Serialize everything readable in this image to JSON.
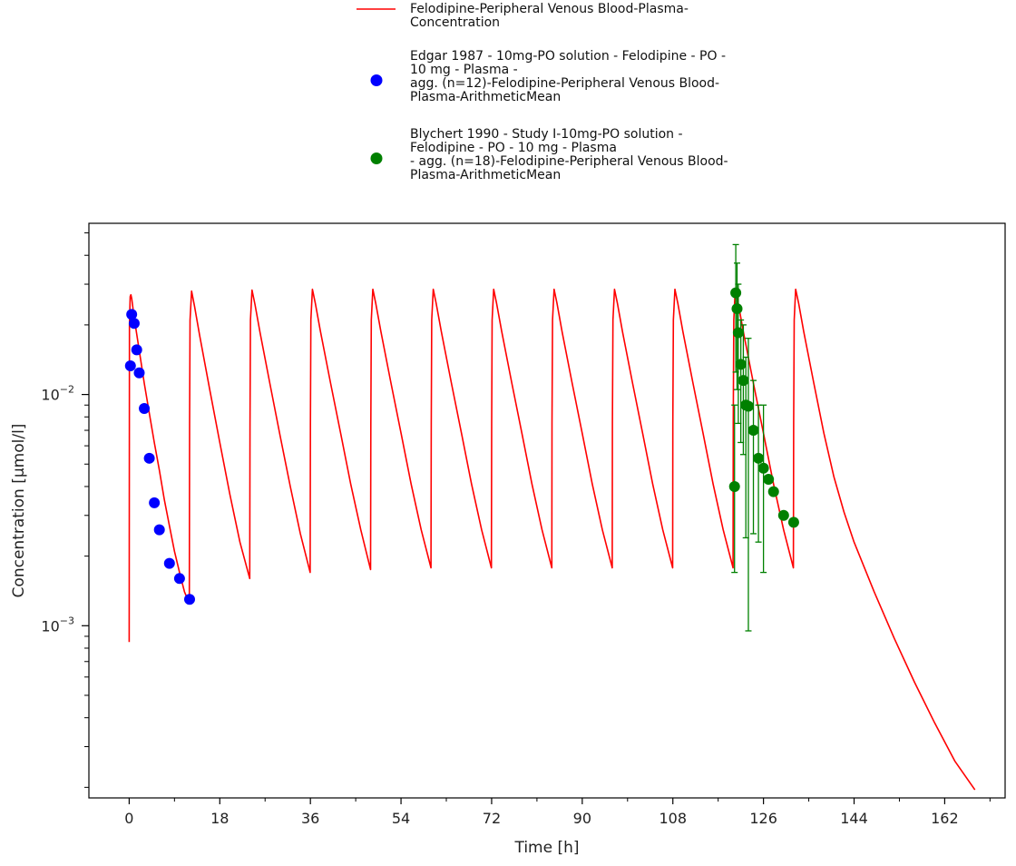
{
  "chart_data": {
    "type": "line",
    "xlabel": "Time [h]",
    "ylabel": "Concentration [µmol/l]",
    "xlim": [
      -8,
      174
    ],
    "ylim": [
      0.00018,
      0.055
    ],
    "yscale": "log",
    "x_ticks": [
      0,
      18,
      36,
      54,
      72,
      90,
      108,
      126,
      144,
      162
    ],
    "y_ticks": [
      {
        "value": 0.001,
        "base": "10",
        "exp": "−3"
      },
      {
        "value": 0.01,
        "base": "10",
        "exp": "−2"
      }
    ],
    "legend_position": "top-center",
    "series": [
      {
        "name": "Felodipine-Peripheral Venous Blood-Plasma-Concentration",
        "legend_lines": [
          "Felodipine-Peripheral Venous Blood-Plasma-",
          "Concentration"
        ],
        "kind": "line",
        "color": "#ff0000",
        "dosing_interval_h": 12,
        "n_doses": 12,
        "x": [
          0,
          0.05,
          0.2,
          0.35,
          0.5,
          1,
          2,
          3,
          4,
          5,
          6,
          7,
          8,
          9,
          10,
          11,
          11.95,
          12,
          12.1,
          12.4,
          13,
          14,
          16,
          18,
          20,
          22,
          23.95,
          24,
          24.1,
          24.4,
          25,
          26,
          28,
          30,
          32,
          34,
          35.95,
          36,
          36.1,
          36.4,
          37,
          38,
          40,
          42,
          44,
          46,
          47.95,
          48,
          48.1,
          48.4,
          49,
          50,
          52,
          54,
          56,
          58,
          59.95,
          60,
          60.1,
          60.4,
          61,
          62,
          64,
          66,
          68,
          70,
          71.95,
          72,
          72.1,
          72.4,
          73,
          74,
          76,
          78,
          80,
          82,
          83.95,
          84,
          84.1,
          84.4,
          85,
          86,
          88,
          90,
          92,
          94,
          95.95,
          96,
          96.1,
          96.4,
          97,
          98,
          100,
          102,
          104,
          106,
          107.95,
          108,
          108.1,
          108.4,
          109,
          110,
          112,
          114,
          116,
          118,
          119.95,
          120,
          120.1,
          120.4,
          121,
          122,
          124,
          126,
          128,
          130,
          131.95,
          132,
          132.1,
          132.4,
          133,
          134,
          136,
          138,
          140,
          142,
          144,
          148,
          152,
          156,
          160,
          164,
          168
        ],
        "y": [
          0.00085,
          0.02,
          0.0265,
          0.027,
          0.026,
          0.0215,
          0.0155,
          0.0112,
          0.0083,
          0.0062,
          0.0047,
          0.0035,
          0.0027,
          0.0021,
          0.0017,
          0.0014,
          0.00125,
          0.0075,
          0.021,
          0.028,
          0.024,
          0.018,
          0.0105,
          0.0062,
          0.0037,
          0.0023,
          0.0016,
          0.0075,
          0.021,
          0.0283,
          0.0245,
          0.0185,
          0.011,
          0.0066,
          0.004,
          0.0025,
          0.0017,
          0.0075,
          0.021,
          0.0285,
          0.0247,
          0.0187,
          0.0112,
          0.0068,
          0.0041,
          0.0026,
          0.00175,
          0.0075,
          0.021,
          0.0285,
          0.0247,
          0.0187,
          0.0112,
          0.0068,
          0.0041,
          0.0026,
          0.00178,
          0.0075,
          0.021,
          0.0285,
          0.0247,
          0.0187,
          0.0112,
          0.0068,
          0.0041,
          0.0026,
          0.00178,
          0.0075,
          0.021,
          0.0285,
          0.0247,
          0.0187,
          0.0112,
          0.0068,
          0.0041,
          0.0026,
          0.00178,
          0.0075,
          0.021,
          0.0285,
          0.0247,
          0.0187,
          0.0112,
          0.0068,
          0.0041,
          0.0026,
          0.00178,
          0.0075,
          0.021,
          0.0285,
          0.0247,
          0.0187,
          0.0112,
          0.0068,
          0.0041,
          0.0026,
          0.00178,
          0.0075,
          0.021,
          0.0285,
          0.0247,
          0.0187,
          0.0112,
          0.0068,
          0.0041,
          0.0026,
          0.00178,
          0.0075,
          0.021,
          0.0285,
          0.0247,
          0.0187,
          0.0112,
          0.0068,
          0.0041,
          0.0026,
          0.00178,
          0.0075,
          0.021,
          0.0285,
          0.0247,
          0.0187,
          0.0112,
          0.0068,
          0.0044,
          0.0031,
          0.0023,
          0.0014,
          0.00088,
          0.00057,
          0.00038,
          0.00026,
          0.000195
        ]
      },
      {
        "name": "Edgar 1987 - 10mg-PO solution - Felodipine - PO - 10 mg - Plasma - agg. (n=12)-Felodipine-Peripheral Venous Blood-Plasma-ArithmeticMean",
        "legend_lines": [
          "Edgar 1987 - 10mg-PO solution - Felodipine - PO -",
          "10 mg - Plasma -",
          "agg. (n=12)-Felodipine-Peripheral Venous Blood-",
          "Plasma-ArithmeticMean"
        ],
        "kind": "scatter",
        "color": "#0000ff",
        "x": [
          0.25,
          0.5,
          1.0,
          1.5,
          2.0,
          3.0,
          4.0,
          5.0,
          6.0,
          8.0,
          10.0,
          12.0
        ],
        "y": [
          0.0133,
          0.0222,
          0.0203,
          0.0156,
          0.0124,
          0.0087,
          0.0053,
          0.0034,
          0.0026,
          0.00186,
          0.0016,
          0.0013
        ]
      },
      {
        "name": "Blychert 1990 - Study I-10mg-PO solution - Felodipine - PO - 10 mg - Plasma - agg. (n=18)-Felodipine-Peripheral Venous Blood-Plasma-ArithmeticMean",
        "legend_lines": [
          "Blychert 1990 - Study I-10mg-PO solution -",
          "Felodipine - PO - 10 mg - Plasma",
          "- agg. (n=18)-Felodipine-Peripheral Venous Blood-",
          "Plasma-ArithmeticMean"
        ],
        "kind": "scatter",
        "color": "#008000",
        "x": [
          120.25,
          120.5,
          120.75,
          121.0,
          121.5,
          122.0,
          122.5,
          123.0,
          124.0,
          125.0,
          126.0,
          127.0,
          128.0,
          130.0,
          132.0
        ],
        "y": [
          0.004,
          0.0275,
          0.0235,
          0.0185,
          0.0135,
          0.0115,
          0.009,
          0.0089,
          0.007,
          0.0053,
          0.0048,
          0.0043,
          0.0038,
          0.003,
          0.0028
        ],
        "y_upper": [
          0.009,
          0.0445,
          0.037,
          0.03,
          0.021,
          0.02,
          0.0145,
          0.0175,
          0.0115,
          0.009,
          0.009,
          0.0,
          0.0,
          0.0,
          0.0
        ],
        "y_lower": [
          0.0017,
          0.0125,
          0.0105,
          0.0075,
          0.0062,
          0.0055,
          0.0024,
          0.00095,
          0.0025,
          0.0023,
          0.0017,
          0.0,
          0.0,
          0.0,
          0.0
        ]
      }
    ]
  }
}
